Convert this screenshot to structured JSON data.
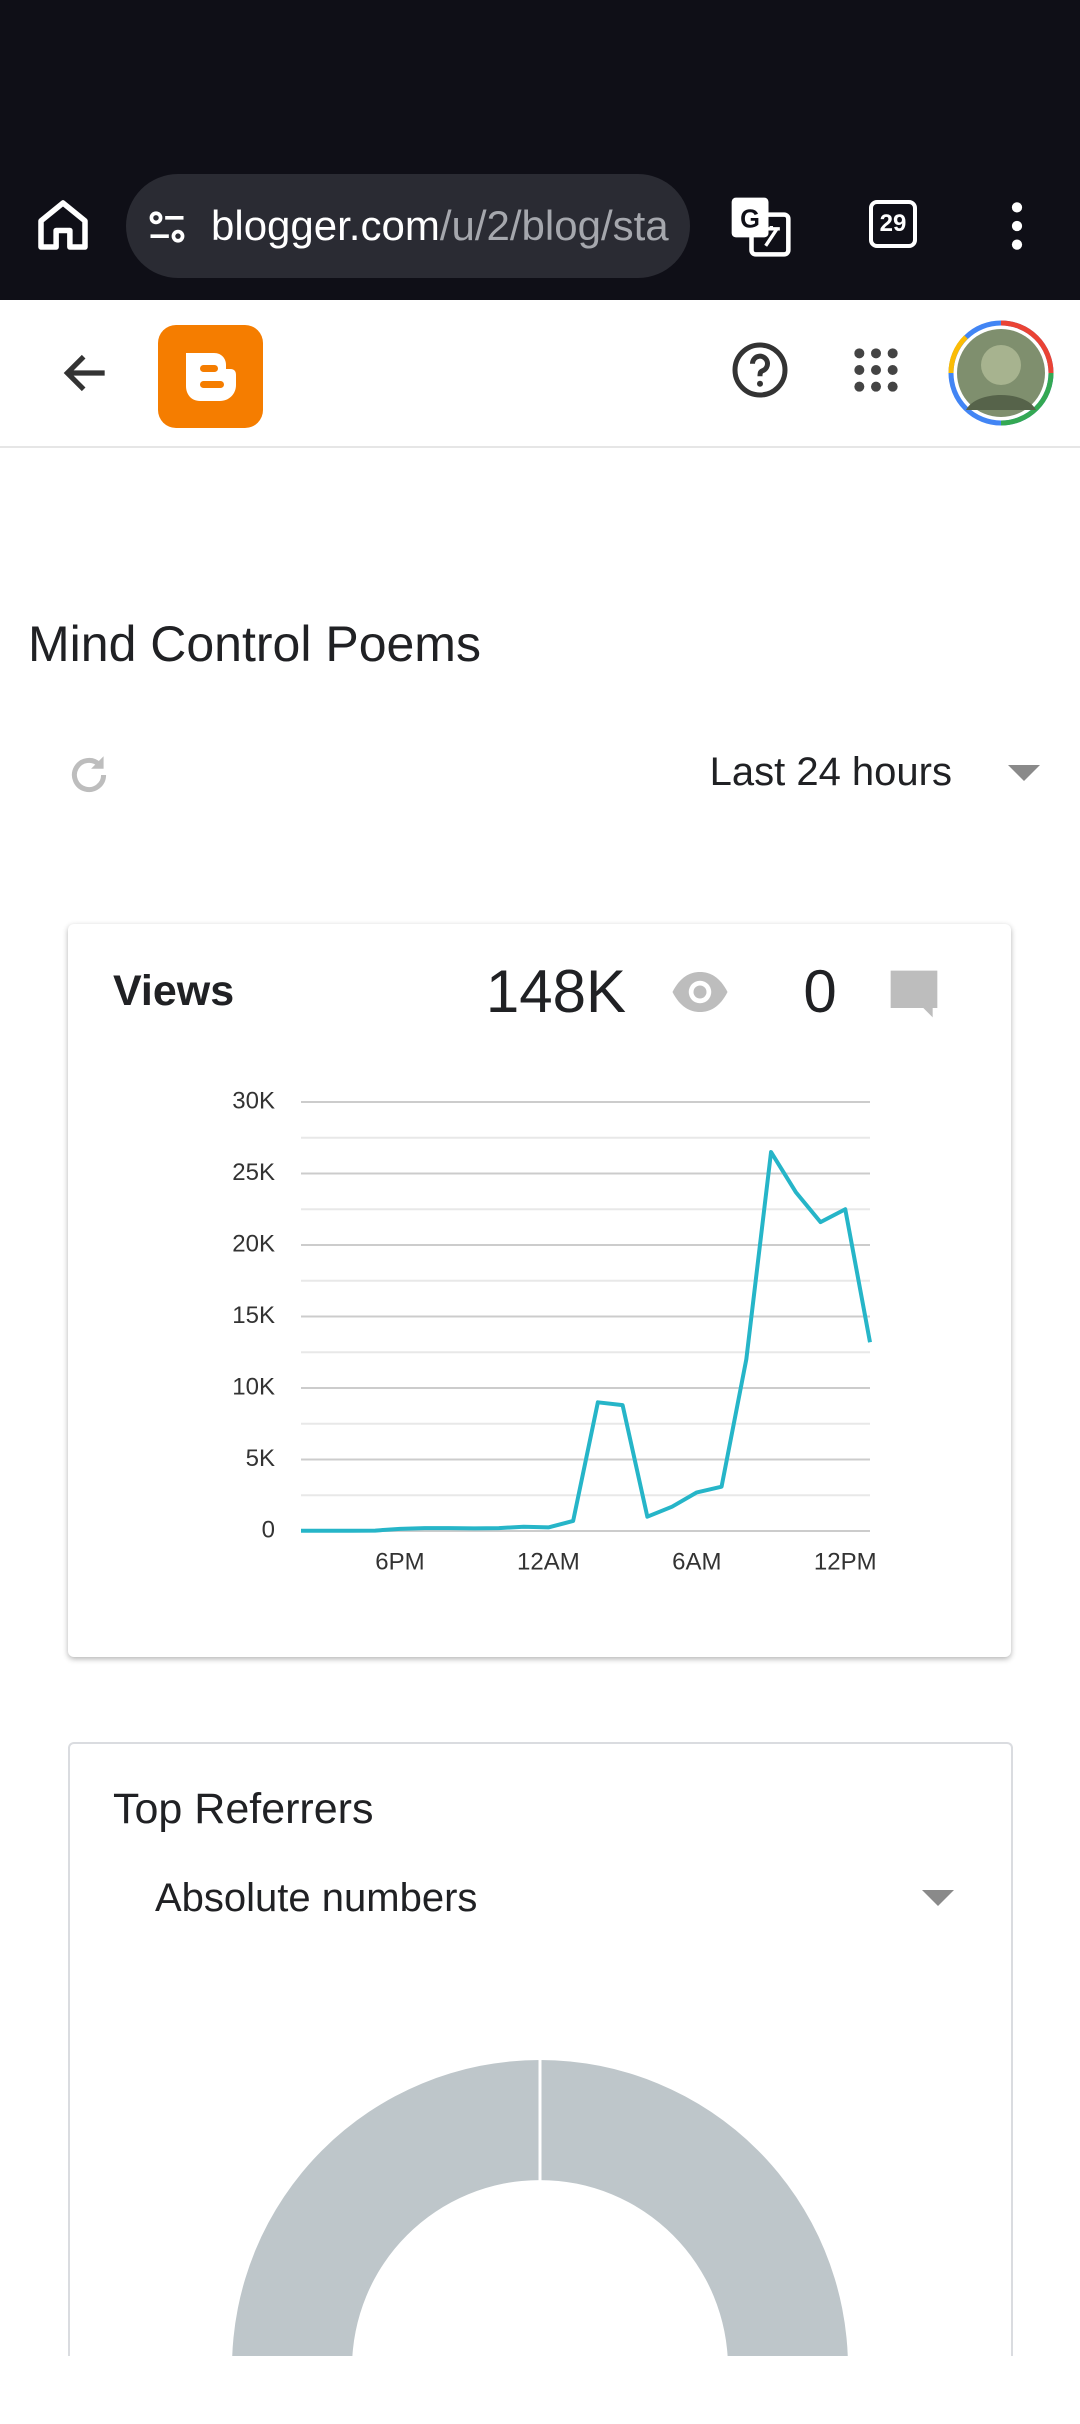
{
  "browser": {
    "url_host": "blogger.com",
    "url_path": "/u/2/blog/sta",
    "tab_count": "29"
  },
  "blog_title": "Mind Control Poems",
  "range_selector": "Last 24 hours",
  "views_card": {
    "title": "Views",
    "views_total": "148K",
    "comments_total": "0"
  },
  "referrers_card": {
    "title": "Top Referrers",
    "mode": "Absolute numbers"
  },
  "chart_data": {
    "type": "line",
    "categories": [
      null,
      null,
      null,
      null,
      "6PM",
      null,
      null,
      null,
      null,
      null,
      "12AM",
      null,
      null,
      null,
      null,
      null,
      "6AM",
      null,
      null,
      null,
      null,
      null,
      "12PM",
      null
    ],
    "values": [
      20,
      20,
      20,
      30,
      150,
      200,
      200,
      180,
      200,
      300,
      250,
      700,
      9000,
      8800,
      1000,
      1700,
      2700,
      3100,
      12000,
      26500,
      23700,
      21600,
      22500,
      13200
    ],
    "color": "#26b5c8",
    "ylim": [
      0,
      30000
    ],
    "yticks": [
      0,
      {
        "value": 5000,
        "label": "5K"
      },
      {
        "value": 10000,
        "label": "10K"
      },
      {
        "value": 15000,
        "label": "15K"
      },
      {
        "value": 20000,
        "label": "20K"
      },
      {
        "value": 25000,
        "label": "25K"
      },
      {
        "value": 30000,
        "label": "30K"
      }
    ],
    "grid": true
  }
}
